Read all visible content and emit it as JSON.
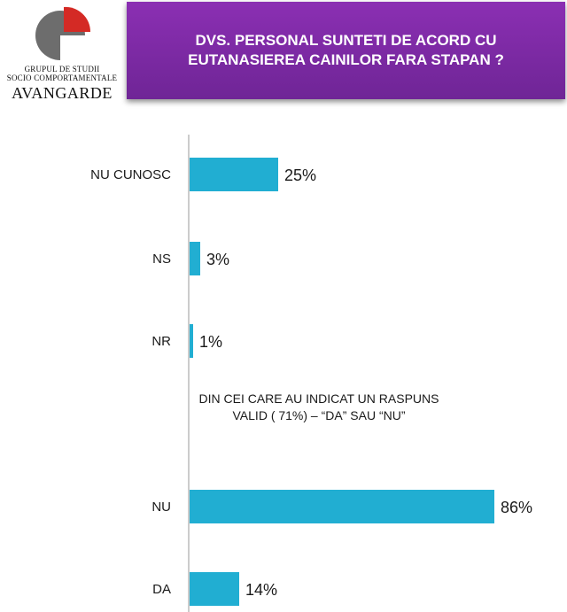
{
  "logo": {
    "line1": "GRUPUL DE STUDII",
    "line2": "SOCIO COMPORTAMENTALE",
    "brand": "AVANGARDE",
    "colors": {
      "disc": "#6d6d6d",
      "accent": "#d42a25"
    }
  },
  "banner": {
    "title": "DVS. PERSONAL SUNTETI DE ACORD CU EUTANASIEREA CAINILOR FARA STAPAN ?",
    "color": "#7b2aa5"
  },
  "note": "DIN CEI CARE AU INDICAT UN RASPUNS\nVALID  ( 71%) – “DA” SAU “NU”",
  "chart_data": {
    "type": "bar",
    "orientation": "horizontal",
    "bar_color": "#21aed2",
    "categories": [
      "NU CUNOSC",
      "NS",
      "NR",
      "NU",
      "DA"
    ],
    "values": [
      25,
      3,
      1,
      86,
      14
    ],
    "value_labels": [
      "25%",
      "3%",
      "1%",
      "86%",
      "14%"
    ],
    "xlim": [
      0,
      100
    ],
    "grid": false,
    "legend": "none"
  }
}
